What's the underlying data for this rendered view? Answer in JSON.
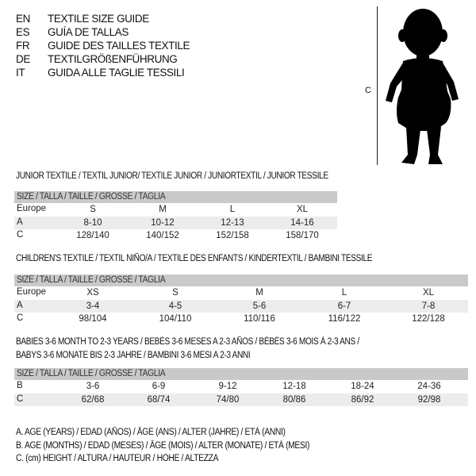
{
  "header": {
    "languages": [
      {
        "code": "EN",
        "title": "TEXTILE SIZE GUIDE"
      },
      {
        "code": "ES",
        "title": "GUÍA DE TALLAS"
      },
      {
        "code": "FR",
        "title": "GUIDE DES TAILLES TEXTILE"
      },
      {
        "code": "DE",
        "title": "TEXTILGRÖßENFÜHRUNG"
      },
      {
        "code": "IT",
        "title": "GUIDA ALLE TAGLIE TESSILI"
      }
    ]
  },
  "figure": {
    "measure_label": "C",
    "icon": "child-silhouette"
  },
  "sections": [
    {
      "title": "JUNIOR TEXTILE / TEXTIL JUNIOR/ TEXTILE JUNIOR / JUNIORTEXTIL / JUNIOR TESSILE",
      "header": "SIZE / TALLA / TAILLE / GRÖSSE / TAGLIA",
      "rows": [
        {
          "label": "Europe",
          "values": [
            "S",
            "M",
            "L",
            "XL"
          ]
        },
        {
          "label": "A",
          "values": [
            "8-10",
            "10-12",
            "12-13",
            "14-16"
          ]
        },
        {
          "label": "C",
          "values": [
            "128/140",
            "140/152",
            "152/158",
            "158/170"
          ]
        }
      ]
    },
    {
      "title": "CHILDREN'S TEXTILE / TEXTIL NIÑO/A / TEXTILE DES ENFANTS / KINDERTEXTIL / BAMBINI TESSILE",
      "header": "SIZE / TALLA / TAILLE / GRÖSSE / TAGLIA",
      "rows": [
        {
          "label": "Europe",
          "values": [
            "XS",
            "S",
            "M",
            "L",
            "XL"
          ]
        },
        {
          "label": "A",
          "values": [
            "3-4",
            "4-5",
            "5-6",
            "6-7",
            "7-8"
          ]
        },
        {
          "label": "C",
          "values": [
            "98/104",
            "104/110",
            "110/116",
            "116/122",
            "122/128"
          ]
        }
      ]
    },
    {
      "title": "BABIES 3-6 MONTH TO 2-3 YEARS / BEBÉS 3-6 MESES A 2-3 AÑOS / BÉBÉS 3-6 MOIS À 2-3 ANS /",
      "title2": "BABYS 3-6 MONATE BIS 2-3 JAHRE / BAMBINI 3-6 MESI A 2-3 ANNI",
      "header": "SIZE / TALLA / TAILLE / GRÖSSE / TAGLIA",
      "rows": [
        {
          "label": "B",
          "values": [
            "3-6",
            "6-9",
            "9-12",
            "12-18",
            "18-24",
            "24-36"
          ]
        },
        {
          "label": "C",
          "values": [
            "62/68",
            "68/74",
            "74/80",
            "80/86",
            "86/92",
            "92/98"
          ]
        }
      ]
    }
  ],
  "legend": [
    "A. AGE (YEARS) / EDAD (AÑOS) / ÂGE (ANS) / ALTER (JAHRE) / ETÀ (ANNI)",
    "B. AGE (MONTHS) / EDAD (MESES) / ÂGE (MOIS) / ALTER (MONATE) / ETÀ (MESI)",
    "C. (cm) HEIGHT / ALTURA / HAUTEUR / HÖHE / ALTEZZA"
  ]
}
